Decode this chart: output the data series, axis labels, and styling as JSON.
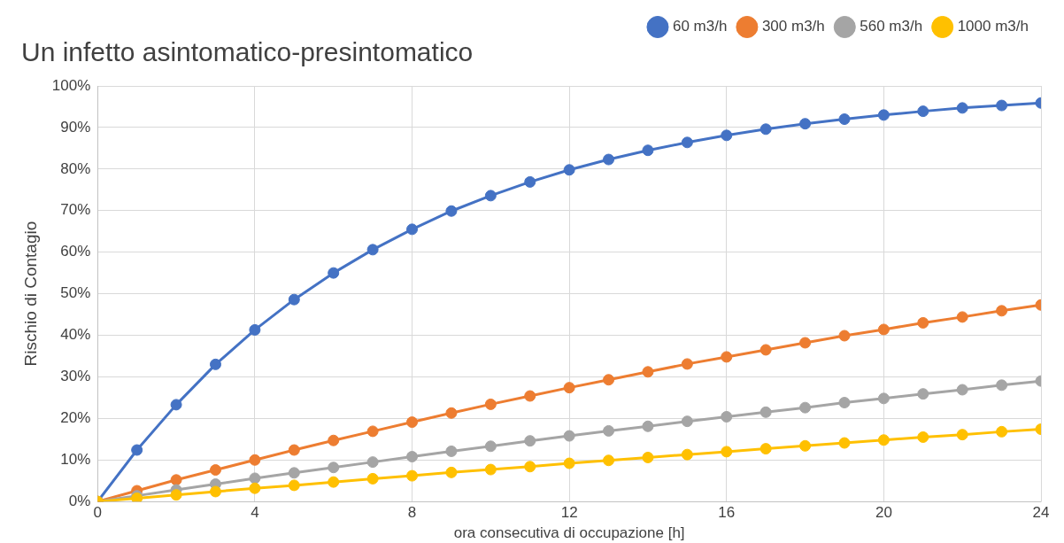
{
  "chart_data": {
    "type": "line",
    "title": "Un infetto asintomatico-presintomatico",
    "xlabel": "ora consecutiva di occupazione [h]",
    "ylabel": "Rischio di Contagio",
    "x": [
      0,
      1,
      2,
      3,
      4,
      5,
      6,
      7,
      8,
      9,
      10,
      11,
      12,
      13,
      14,
      15,
      16,
      17,
      18,
      19,
      20,
      21,
      22,
      23,
      24
    ],
    "series": [
      {
        "name": "60 m3/h",
        "color": "#4472c4",
        "values": [
          0,
          12.4,
          23.3,
          33,
          41.3,
          48.6,
          55,
          60.6,
          65.5,
          69.9,
          73.6,
          76.9,
          79.8,
          82.3,
          84.5,
          86.4,
          88.1,
          89.6,
          90.9,
          92,
          93,
          93.9,
          94.7,
          95.3,
          95.9
        ]
      },
      {
        "name": "300 m3/h",
        "color": "#ed7d31",
        "values": [
          0,
          2.6,
          5.2,
          7.6,
          10,
          12.4,
          14.7,
          16.9,
          19.1,
          21.3,
          23.4,
          25.4,
          27.4,
          29.3,
          31.2,
          33.1,
          34.8,
          36.5,
          38.2,
          39.9,
          41.4,
          43,
          44.4,
          45.9,
          47.3
        ]
      },
      {
        "name": "560 m3/h",
        "color": "#a5a5a5",
        "values": [
          0,
          1.4,
          2.8,
          4.2,
          5.6,
          6.9,
          8.2,
          9.5,
          10.8,
          12.1,
          13.3,
          14.6,
          15.8,
          17,
          18.1,
          19.3,
          20.4,
          21.5,
          22.6,
          23.8,
          24.8,
          25.9,
          26.9,
          28,
          29
        ]
      },
      {
        "name": "1000 m3/h",
        "color": "#ffc000",
        "values": [
          0,
          0.8,
          1.6,
          2.4,
          3.2,
          3.9,
          4.7,
          5.5,
          6.2,
          7,
          7.7,
          8.4,
          9.2,
          9.9,
          10.6,
          11.3,
          12,
          12.7,
          13.4,
          14.1,
          14.8,
          15.5,
          16.1,
          16.8,
          17.4
        ]
      }
    ],
    "xlim": [
      0,
      24
    ],
    "xticks": [
      0,
      4,
      8,
      12,
      16,
      20,
      24
    ],
    "ylim": [
      0,
      100
    ],
    "yticks": [
      {
        "value": 0,
        "label": "0%"
      },
      {
        "value": 10,
        "label": "10%"
      },
      {
        "value": 20,
        "label": "20%"
      },
      {
        "value": 30,
        "label": "30%"
      },
      {
        "value": 40,
        "label": "40%"
      },
      {
        "value": 50,
        "label": "50%"
      },
      {
        "value": 60,
        "label": "60%"
      },
      {
        "value": 70,
        "label": "70%"
      },
      {
        "value": 80,
        "label": "80%"
      },
      {
        "value": 90,
        "label": "90%"
      },
      {
        "value": 100,
        "label": "100%"
      }
    ],
    "grid": true,
    "legend": "top right",
    "marker": "circle",
    "line_style": "solid"
  }
}
